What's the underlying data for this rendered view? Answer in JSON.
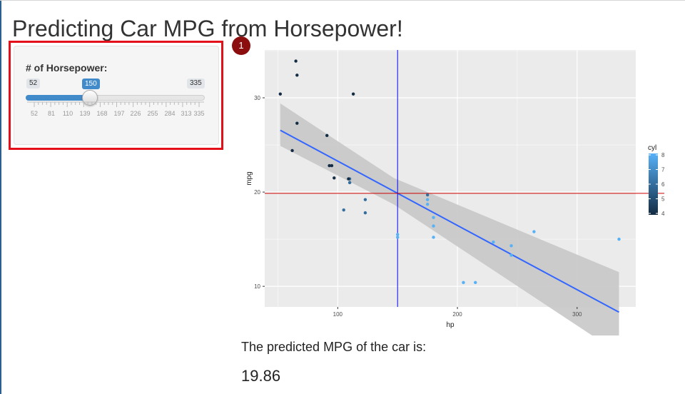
{
  "app": {
    "title": "Predicting Car MPG from Horsepower!"
  },
  "annotation": {
    "step_number": "1",
    "highlight_color": "#e3101a",
    "badge_color": "#8b0d0d"
  },
  "sidebar": {
    "slider": {
      "label": "# of Horsepower:",
      "min": 52,
      "max": 335,
      "value": 150,
      "accent_color": "#428bca",
      "ticks": [
        "52",
        "81",
        "110",
        "139",
        "168",
        "197",
        "226",
        "255",
        "284",
        "313",
        "335"
      ]
    }
  },
  "main": {
    "predicted_label": "The predicted MPG of the car is:",
    "predicted_value": "19.86"
  },
  "chart_data": {
    "type": "scatter",
    "xlabel": "hp",
    "ylabel": "mpg",
    "xlim": [
      39,
      349
    ],
    "ylim": [
      10.4,
      33.9
    ],
    "x_ticks": [
      100,
      200,
      300
    ],
    "y_ticks": [
      10,
      20,
      30
    ],
    "grid": true,
    "legend": {
      "title": "cyl",
      "position": "right",
      "ticks": [
        "8",
        "7",
        "6",
        "5",
        "4"
      ],
      "low_color": "#132b43",
      "high_color": "#56b1f7"
    },
    "points": [
      {
        "hp": 110,
        "mpg": 21.0,
        "cyl": 6
      },
      {
        "hp": 110,
        "mpg": 21.0,
        "cyl": 6
      },
      {
        "hp": 93,
        "mpg": 22.8,
        "cyl": 4
      },
      {
        "hp": 110,
        "mpg": 21.4,
        "cyl": 6
      },
      {
        "hp": 175,
        "mpg": 18.7,
        "cyl": 8
      },
      {
        "hp": 105,
        "mpg": 18.1,
        "cyl": 6
      },
      {
        "hp": 245,
        "mpg": 14.3,
        "cyl": 8
      },
      {
        "hp": 62,
        "mpg": 24.4,
        "cyl": 4
      },
      {
        "hp": 95,
        "mpg": 22.8,
        "cyl": 4
      },
      {
        "hp": 123,
        "mpg": 19.2,
        "cyl": 6
      },
      {
        "hp": 123,
        "mpg": 17.8,
        "cyl": 6
      },
      {
        "hp": 180,
        "mpg": 16.4,
        "cyl": 8
      },
      {
        "hp": 180,
        "mpg": 17.3,
        "cyl": 8
      },
      {
        "hp": 180,
        "mpg": 15.2,
        "cyl": 8
      },
      {
        "hp": 205,
        "mpg": 10.4,
        "cyl": 8
      },
      {
        "hp": 215,
        "mpg": 10.4,
        "cyl": 8
      },
      {
        "hp": 230,
        "mpg": 14.7,
        "cyl": 8
      },
      {
        "hp": 66,
        "mpg": 32.4,
        "cyl": 4
      },
      {
        "hp": 52,
        "mpg": 30.4,
        "cyl": 4
      },
      {
        "hp": 65,
        "mpg": 33.9,
        "cyl": 4
      },
      {
        "hp": 97,
        "mpg": 21.5,
        "cyl": 4
      },
      {
        "hp": 150,
        "mpg": 15.5,
        "cyl": 8
      },
      {
        "hp": 150,
        "mpg": 15.2,
        "cyl": 8
      },
      {
        "hp": 245,
        "mpg": 13.3,
        "cyl": 8
      },
      {
        "hp": 175,
        "mpg": 19.2,
        "cyl": 8
      },
      {
        "hp": 66,
        "mpg": 27.3,
        "cyl": 4
      },
      {
        "hp": 91,
        "mpg": 26.0,
        "cyl": 4
      },
      {
        "hp": 113,
        "mpg": 30.4,
        "cyl": 4
      },
      {
        "hp": 264,
        "mpg": 15.8,
        "cyl": 8
      },
      {
        "hp": 175,
        "mpg": 19.7,
        "cyl": 6
      },
      {
        "hp": 335,
        "mpg": 15.0,
        "cyl": 8
      },
      {
        "hp": 109,
        "mpg": 21.4,
        "cyl": 4
      }
    ],
    "fit_line": {
      "type": "linear",
      "intercept": 30.1,
      "slope": -0.0682,
      "color": "#3366ff",
      "band_color": "#c8c8c8",
      "band_at_min_x": [
        24.9,
        29.4
      ],
      "band_at_mean_x": [
        18.7,
        21.5
      ],
      "band_at_max_x": [
        2.9,
        11.5
      ]
    },
    "reference_lines": {
      "vertical_hp": 150,
      "vertical_color": "#0000ff",
      "horizontal_mpg": 19.86,
      "horizontal_color": "#cc0000"
    }
  }
}
